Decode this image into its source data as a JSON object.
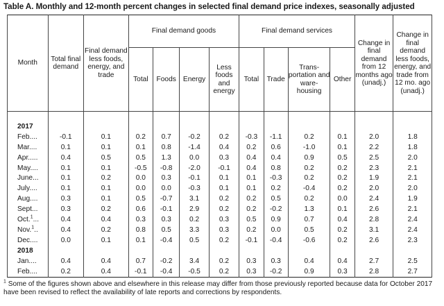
{
  "title": "Table A. Monthly and 12-month percent changes in selected final demand price indexes, seasonally adjusted",
  "headers": {
    "month": "Month",
    "total_final_demand": "Total final demand",
    "fd_less": "Final demand less foods, energy, and trade",
    "goods_group": "Final demand goods",
    "goods_total": "Total",
    "goods_foods": "Foods",
    "goods_energy": "Energy",
    "goods_less": "Less foods and energy",
    "services_group": "Final demand services",
    "services_total": "Total",
    "services_trade": "Trade",
    "services_transport": "Trans- portation and ware- housing",
    "services_other": "Other",
    "change_12": "Change in final demand from 12 months ago (unadj.)",
    "change_12_less": "Change in final demand less foods, energy, and trade from 12 mo. ago (unadj.)"
  },
  "years": [
    "2017",
    "2018"
  ],
  "rows_2017": [
    {
      "month": "Feb....",
      "sup": "",
      "values": [
        "-0.1",
        "0.1",
        "0.2",
        "0.7",
        "-0.2",
        "0.2",
        "-0.3",
        "-1.1",
        "0.2",
        "0.1",
        "2.0",
        "1.8"
      ]
    },
    {
      "month": "Mar....",
      "sup": "",
      "values": [
        "0.1",
        "0.1",
        "0.1",
        "0.8",
        "-1.4",
        "0.4",
        "0.2",
        "0.6",
        "-1.0",
        "0.1",
        "2.2",
        "1.8"
      ]
    },
    {
      "month": "Apr.....",
      "sup": "",
      "values": [
        "0.4",
        "0.5",
        "0.5",
        "1.3",
        "0.0",
        "0.3",
        "0.4",
        "0.4",
        "0.9",
        "0.5",
        "2.5",
        "2.0"
      ]
    },
    {
      "month": "May....",
      "sup": "",
      "values": [
        "0.1",
        "0.1",
        "-0.5",
        "-0.8",
        "-2.0",
        "-0.1",
        "0.4",
        "0.8",
        "0.2",
        "0.2",
        "2.3",
        "2.1"
      ]
    },
    {
      "month": "June...",
      "sup": "",
      "values": [
        "0.1",
        "0.2",
        "0.0",
        "0.3",
        "-0.1",
        "0.1",
        "0.1",
        "-0.3",
        "0.2",
        "0.2",
        "1.9",
        "2.1"
      ]
    },
    {
      "month": "July....",
      "sup": "",
      "values": [
        "0.1",
        "0.1",
        "0.0",
        "0.0",
        "-0.3",
        "0.1",
        "0.1",
        "0.2",
        "-0.4",
        "0.2",
        "2.0",
        "2.0"
      ]
    },
    {
      "month": "Aug....",
      "sup": "",
      "values": [
        "0.3",
        "0.1",
        "0.5",
        "-0.7",
        "3.1",
        "0.2",
        "0.2",
        "0.5",
        "0.2",
        "0.0",
        "2.4",
        "1.9"
      ]
    },
    {
      "month": "Sept...",
      "sup": "",
      "values": [
        "0.3",
        "0.2",
        "0.6",
        "-0.1",
        "2.9",
        "0.2",
        "0.2",
        "-0.2",
        "1.3",
        "0.1",
        "2.6",
        "2.1"
      ]
    },
    {
      "month": "Oct.",
      "sup": "1",
      "suffix": "...",
      "values": [
        "0.4",
        "0.4",
        "0.3",
        "0.3",
        "0.2",
        "0.3",
        "0.5",
        "0.9",
        "0.7",
        "0.4",
        "2.8",
        "2.4"
      ]
    },
    {
      "month": "Nov.",
      "sup": "1",
      "suffix": "..",
      "values": [
        "0.4",
        "0.2",
        "0.8",
        "0.5",
        "3.3",
        "0.3",
        "0.2",
        "0.0",
        "0.5",
        "0.2",
        "3.1",
        "2.4"
      ]
    },
    {
      "month": "Dec....",
      "sup": "",
      "values": [
        "0.0",
        "0.1",
        "0.1",
        "-0.4",
        "0.5",
        "0.2",
        "-0.1",
        "-0.4",
        "-0.6",
        "0.2",
        "2.6",
        "2.3"
      ]
    }
  ],
  "rows_2018": [
    {
      "month": "Jan....",
      "sup": "",
      "values": [
        "0.4",
        "0.4",
        "0.7",
        "-0.2",
        "3.4",
        "0.2",
        "0.3",
        "0.3",
        "0.4",
        "0.4",
        "2.7",
        "2.5"
      ]
    },
    {
      "month": "Feb....",
      "sup": "",
      "values": [
        "0.2",
        "0.4",
        "-0.1",
        "-0.4",
        "-0.5",
        "0.2",
        "0.3",
        "-0.2",
        "0.9",
        "0.3",
        "2.8",
        "2.7"
      ]
    }
  ],
  "footnote": {
    "mark": "1",
    "text": "Some of the figures shown above and elsewhere in this release may differ from those previously reported because data for October 2017 have been revised to reflect the availability of late reports and corrections by respondents."
  }
}
